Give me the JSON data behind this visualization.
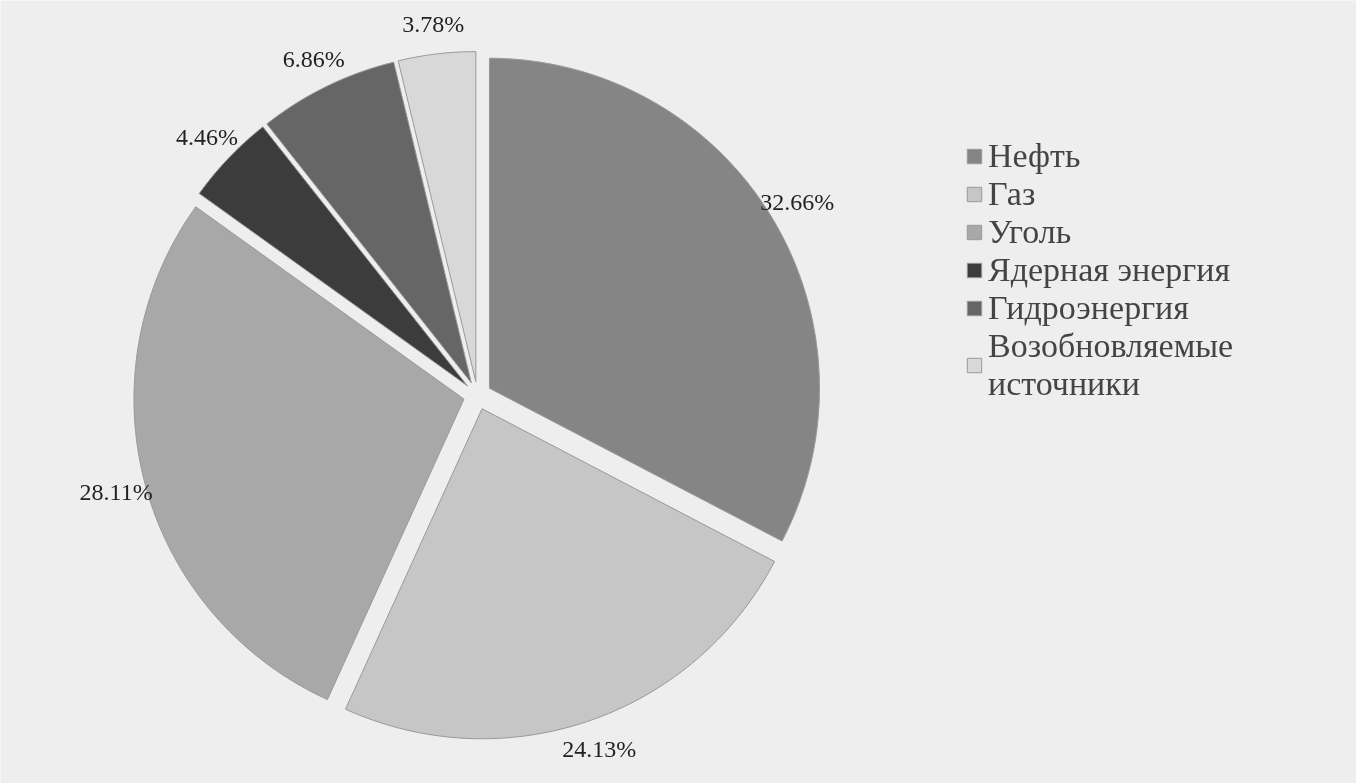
{
  "chart_data": {
    "type": "pie",
    "categories": [
      "Нефть",
      "Газ",
      "Уголь",
      "Ядерная энергия",
      "Гидроэнергия",
      "Возобновляемые источники"
    ],
    "values": [
      32.66,
      24.13,
      28.11,
      4.46,
      6.86,
      3.78
    ],
    "colors": [
      "#858585",
      "#c6c6c6",
      "#a8a8a8",
      "#3c3c3c",
      "#666666",
      "#d8d8d8"
    ],
    "value_labels": [
      "32.66%",
      "24.13%",
      "28.11%",
      "4.46%",
      "6.86%",
      "3.78%"
    ],
    "legend": "right"
  }
}
